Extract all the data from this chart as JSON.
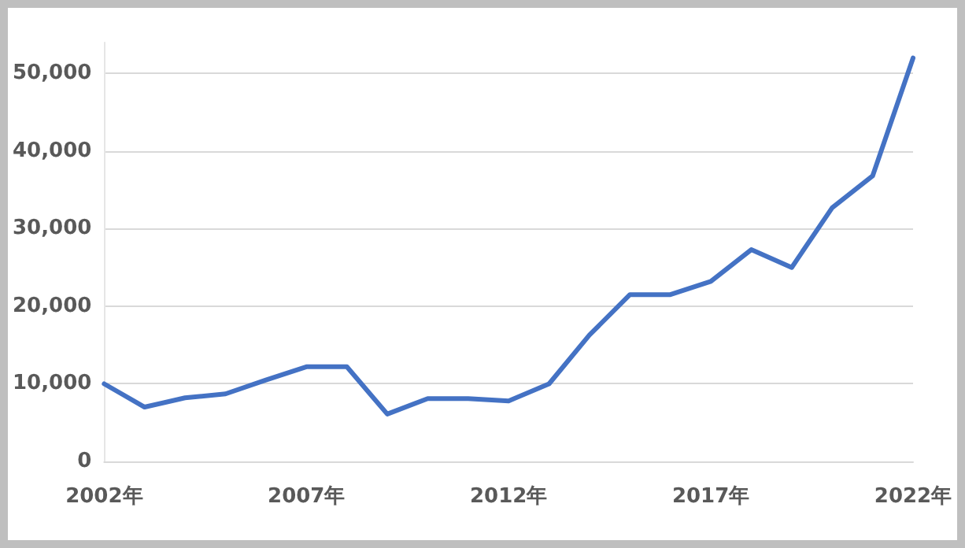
{
  "chart_data": {
    "type": "line",
    "categories": [
      "2002年",
      null,
      null,
      null,
      null,
      "2007年",
      null,
      null,
      null,
      null,
      "2012年",
      null,
      null,
      null,
      null,
      "2017年",
      null,
      null,
      null,
      null,
      "2022年"
    ],
    "series": [
      {
        "color": "#4472c4",
        "values": [
          10000,
          7000,
          8200,
          8700,
          10500,
          12200,
          12200,
          6100,
          8100,
          8100,
          7800,
          10000,
          16300,
          21500,
          21500,
          23200,
          27300,
          25000,
          32700,
          36800,
          52000
        ]
      }
    ],
    "ylim": [
      0,
      54000
    ],
    "yticks": [
      {
        "value": 0,
        "label": "0"
      },
      {
        "value": 10000,
        "label": "10,000"
      },
      {
        "value": 20000,
        "label": "20,000"
      },
      {
        "value": 30000,
        "label": "30,000"
      },
      {
        "value": 40000,
        "label": "40,000"
      },
      {
        "value": 50000,
        "label": "50,000"
      }
    ],
    "grid": "y",
    "marker": "none",
    "line_style": "solid"
  }
}
